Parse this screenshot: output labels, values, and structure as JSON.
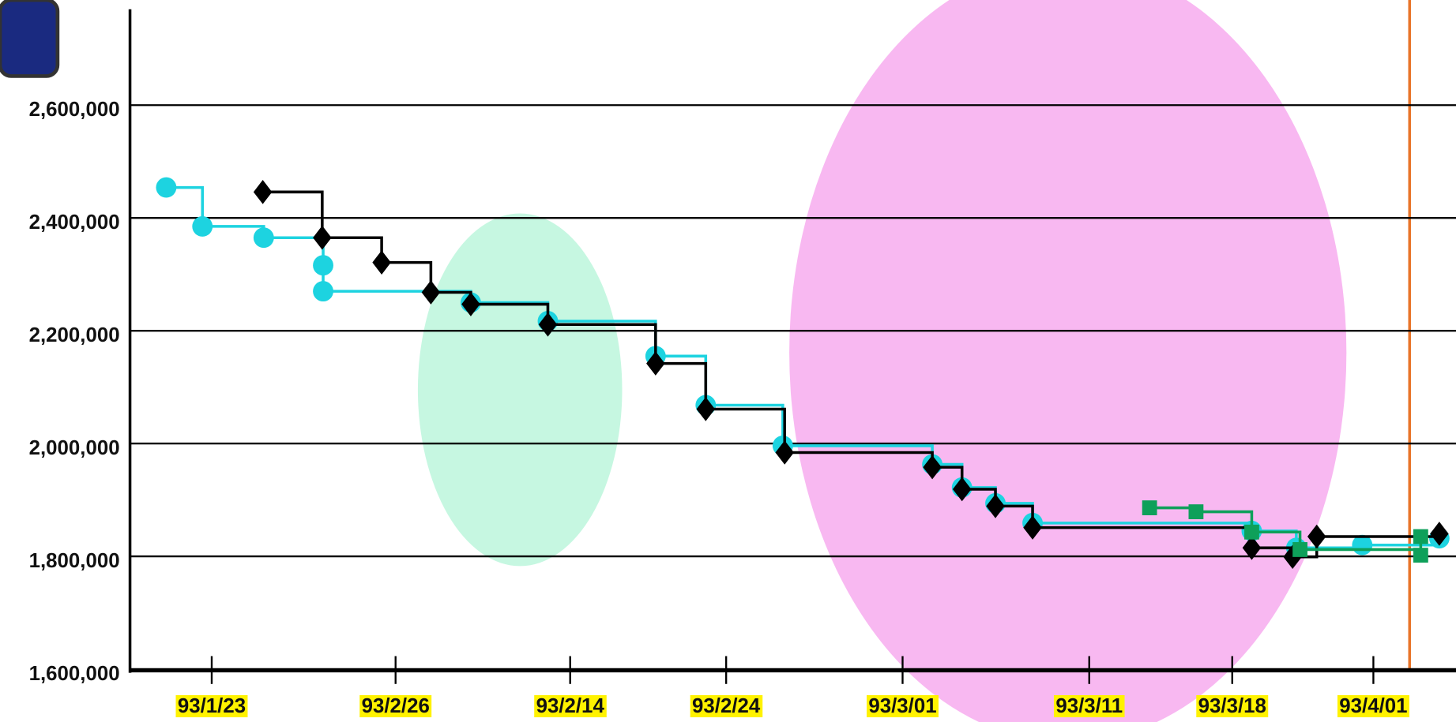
{
  "chart_data": {
    "type": "step-line",
    "xlim": [
      0,
      1428
    ],
    "xticks": [
      {
        "value": 88,
        "label": "93/1/23"
      },
      {
        "value": 286,
        "label": "93/2/26"
      },
      {
        "value": 474,
        "label": "93/2/14"
      },
      {
        "value": 642,
        "label": "93/2/24"
      },
      {
        "value": 832,
        "label": "93/3/01"
      },
      {
        "value": 1033,
        "label": "93/3/11"
      },
      {
        "value": 1187,
        "label": "93/3/18"
      },
      {
        "value": 1339,
        "label": "93/4/01"
      }
    ],
    "ylim": [
      1600000,
      2770000
    ],
    "yticks": [
      {
        "value": 1600000,
        "label": "1,600,000"
      },
      {
        "value": 1800000,
        "label": "1,800,000"
      },
      {
        "value": 2000000,
        "label": "2,000,000"
      },
      {
        "value": 2200000,
        "label": "2,200,000"
      },
      {
        "value": 2400000,
        "label": "2,400,000"
      },
      {
        "value": 2600000,
        "label": "2,600,000"
      }
    ],
    "grid": true,
    "series": [
      {
        "color": "#1dd3e0",
        "marker": "circle",
        "x": [
          39,
          78,
          144,
          208,
          208,
          367,
          450,
          566,
          620,
          703,
          864,
          896,
          932,
          972,
          1208,
          1256,
          1327,
          1410
        ],
        "values": [
          2454000,
          2385000,
          2365000,
          2316000,
          2270000,
          2250000,
          2217000,
          2155000,
          2068000,
          1996000,
          1963000,
          1922000,
          1894000,
          1859000,
          1845000,
          1815000,
          1820000,
          1832000
        ]
      },
      {
        "color": "#000000",
        "marker": "diamond",
        "x": [
          143,
          207,
          271,
          324,
          367,
          450,
          566,
          620,
          705,
          864,
          896,
          932,
          972,
          1208,
          1252,
          1278,
          1410
        ],
        "values": [
          2446000,
          2365000,
          2321000,
          2268000,
          2247000,
          2211000,
          2142000,
          2061000,
          1984000,
          1958000,
          1919000,
          1889000,
          1851000,
          1815000,
          1799000,
          1835000,
          1840000
        ]
      },
      {
        "color": "#0ea05a",
        "marker": "square",
        "x": [
          1098,
          1148,
          1208,
          1260,
          1390,
          1390
        ],
        "values": [
          1886000,
          1879000,
          1843000,
          1812000,
          1802000,
          1835000
        ]
      }
    ]
  }
}
